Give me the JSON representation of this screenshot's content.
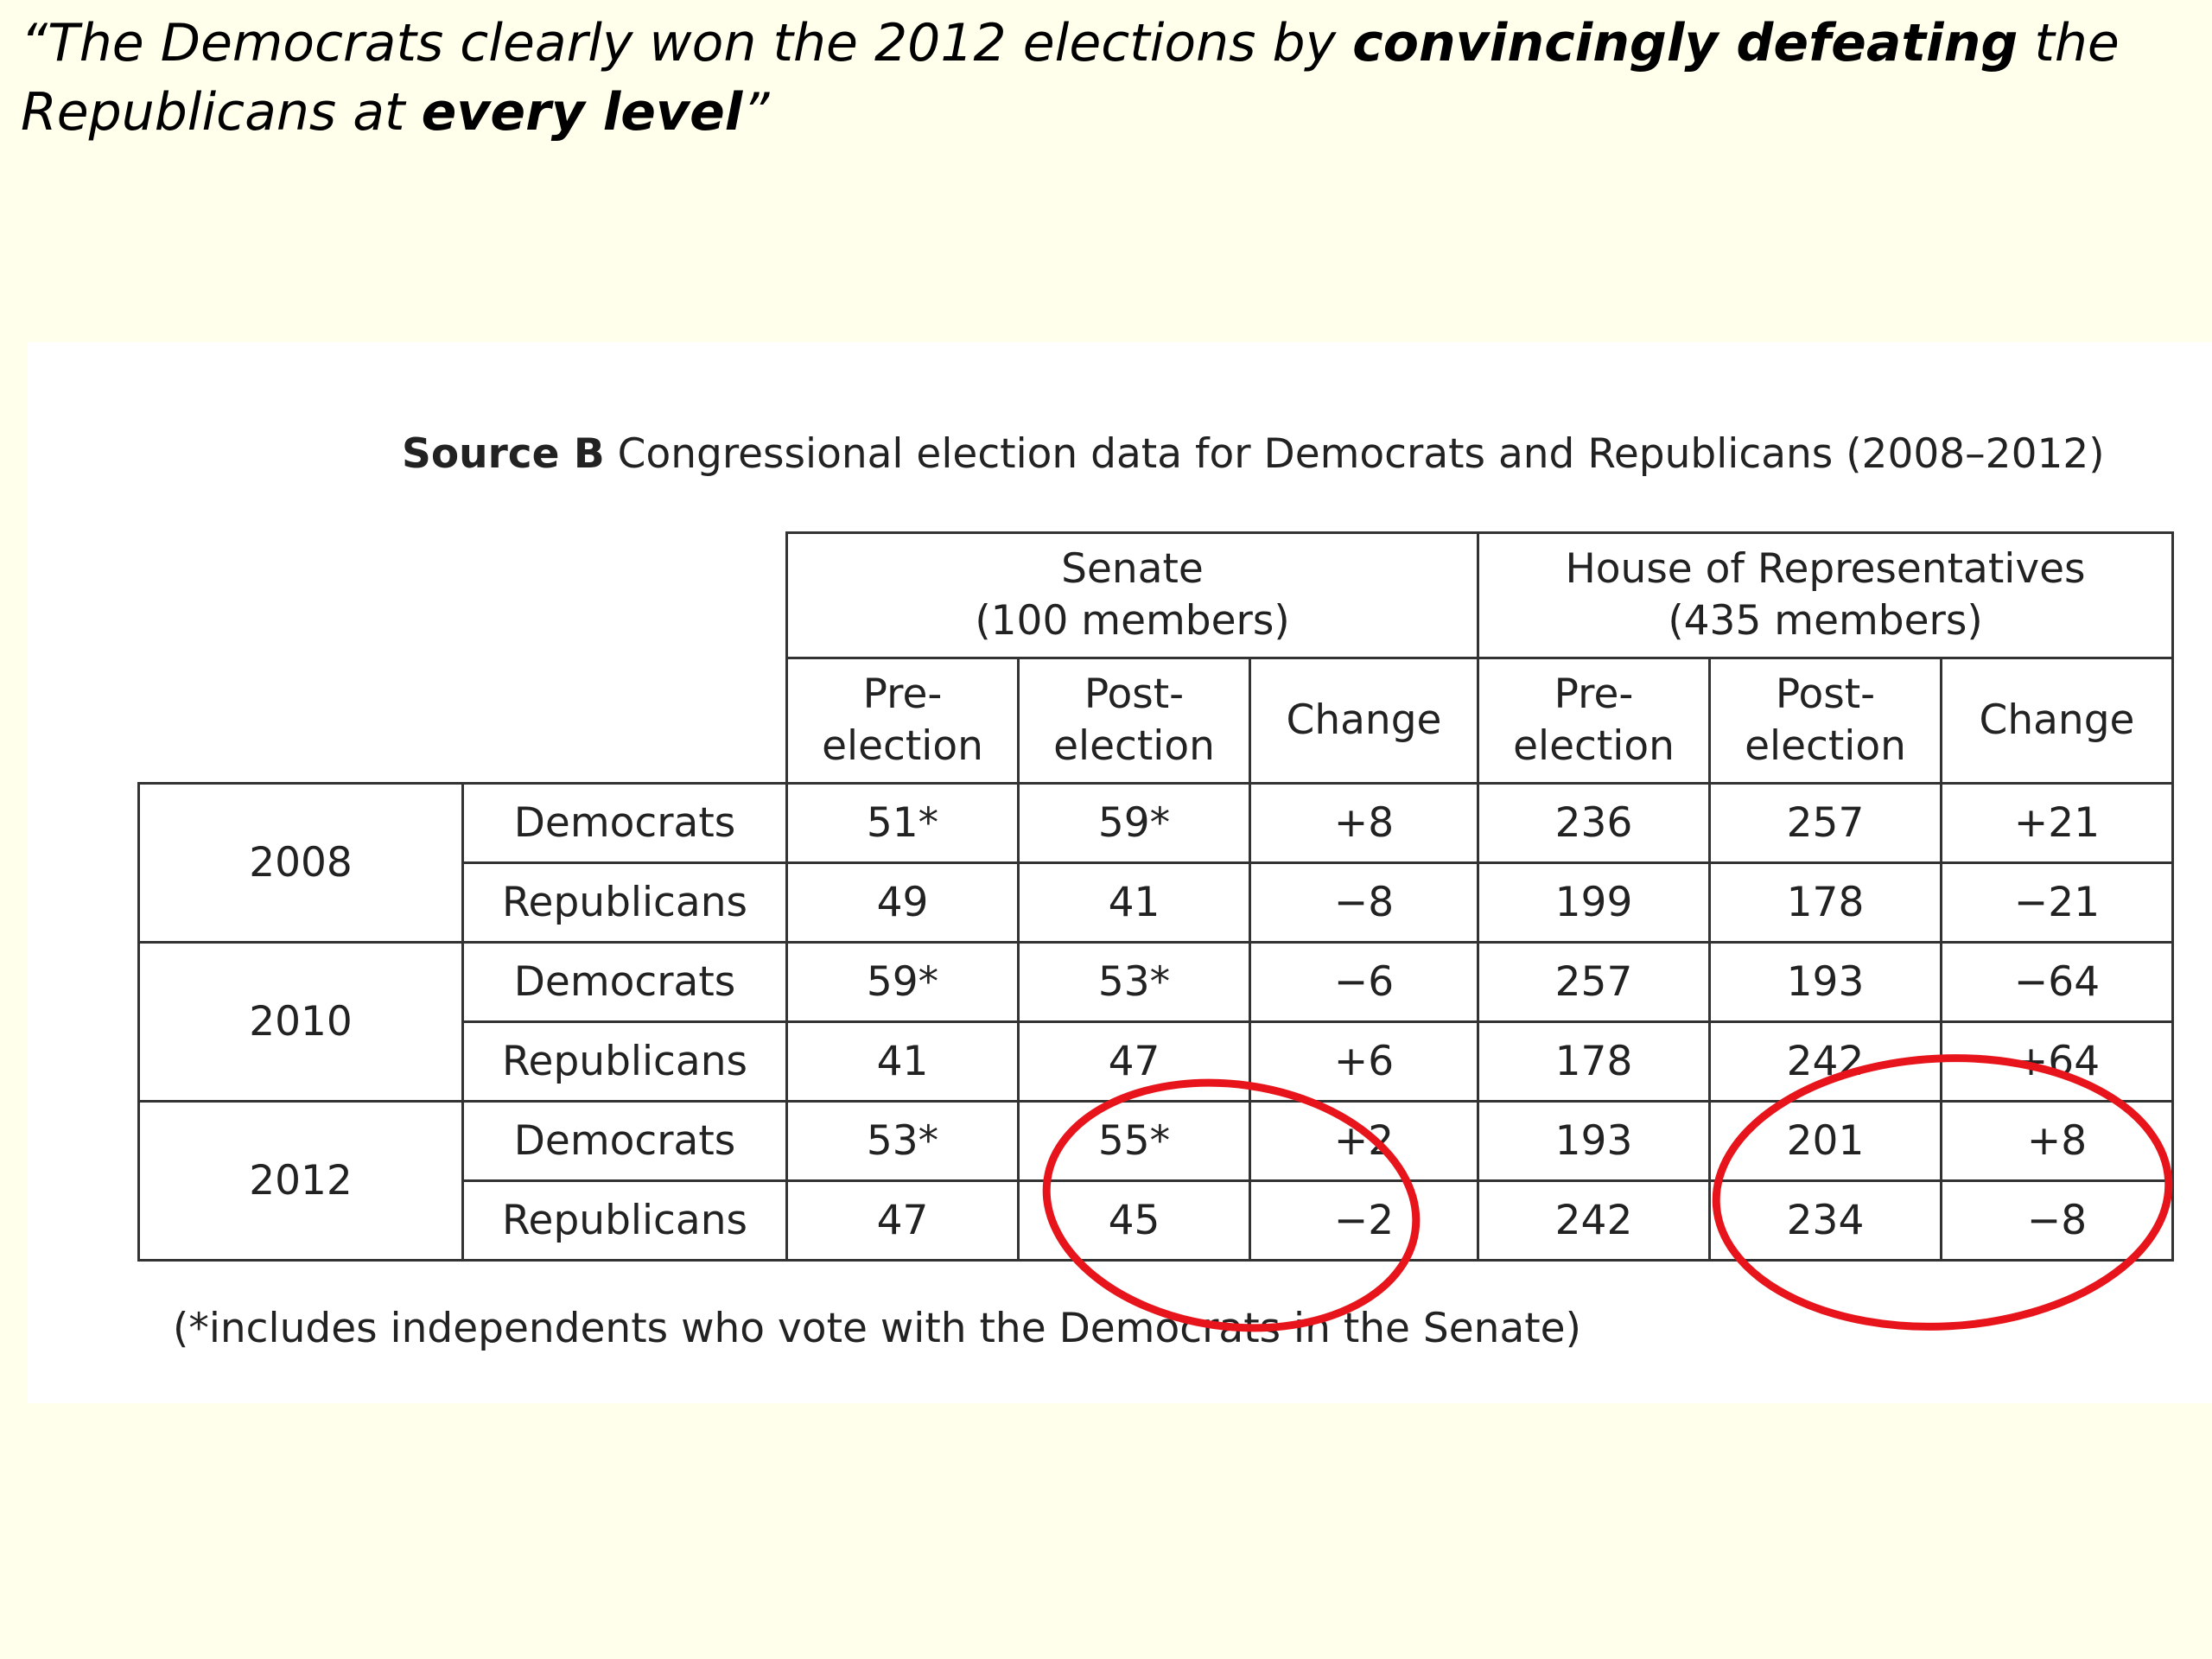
{
  "quote": {
    "part1": "“The Democrats clearly won the 2012 elections by ",
    "bold1": "convincingly defeating",
    "part2": " the Republicans at ",
    "bold2": "every level",
    "part3": "”"
  },
  "source": {
    "label": "Source B",
    "title": "Congressional election data for Democrats and Republicans (2008–2012)"
  },
  "table": {
    "groups": [
      {
        "line1": "Senate",
        "line2": "(100 members)"
      },
      {
        "line1": "House of Representatives",
        "line2": "(435 members)"
      }
    ],
    "subheaders": [
      {
        "line1": "Pre-",
        "line2": "election"
      },
      {
        "line1": "Post-",
        "line2": "election"
      },
      {
        "line1": "Change",
        "line2": ""
      },
      {
        "line1": "Pre-",
        "line2": "election"
      },
      {
        "line1": "Post-",
        "line2": "election"
      },
      {
        "line1": "Change",
        "line2": ""
      }
    ],
    "rows": [
      {
        "year": "2008",
        "party": "Democrats",
        "values": [
          "51*",
          "59*",
          "+8",
          "236",
          "257",
          "+21"
        ]
      },
      {
        "year": "2008",
        "party": "Republicans",
        "values": [
          "49",
          "41",
          "−8",
          "199",
          "178",
          "−21"
        ]
      },
      {
        "year": "2010",
        "party": "Democrats",
        "values": [
          "59*",
          "53*",
          "−6",
          "257",
          "193",
          "−64"
        ]
      },
      {
        "year": "2010",
        "party": "Republicans",
        "values": [
          "41",
          "47",
          "+6",
          "178",
          "242",
          "+64"
        ]
      },
      {
        "year": "2012",
        "party": "Democrats",
        "values": [
          "53*",
          "55*",
          "+2",
          "193",
          "201",
          "+8"
        ]
      },
      {
        "year": "2012",
        "party": "Republicans",
        "values": [
          "47",
          "45",
          "−2",
          "242",
          "234",
          "−8"
        ]
      }
    ]
  },
  "footnote": "(*includes independents who vote with the Democrats in the Senate)",
  "annotation": {
    "color": "#e8141b"
  }
}
